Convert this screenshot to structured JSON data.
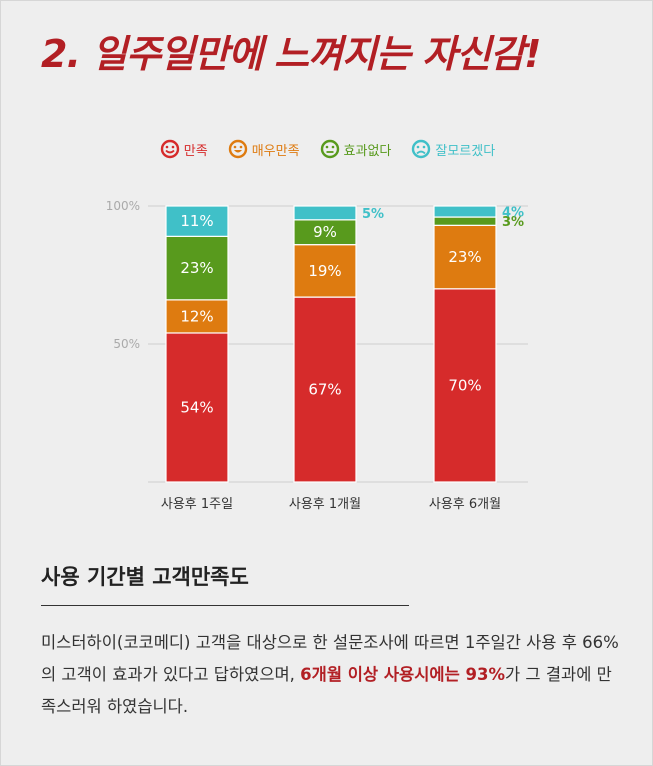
{
  "headline": "2. 일주일만에 느껴지는 자신감!",
  "legend": [
    {
      "label": "만족",
      "color": "#d62b2b",
      "icon": "smile-face-icon"
    },
    {
      "label": "매우만족",
      "color": "#de7b10",
      "icon": "grin-face-icon"
    },
    {
      "label": "효과없다",
      "color": "#589a1d",
      "icon": "neutral-face-icon"
    },
    {
      "label": "잘모르겠다",
      "color": "#40c0c8",
      "icon": "sad-face-icon"
    }
  ],
  "chart_data": {
    "type": "bar",
    "stacked": true,
    "categories": [
      "사용후 1주일",
      "사용후 1개월",
      "사용후 6개월"
    ],
    "series": [
      {
        "name": "만족",
        "color": "#d62b2b",
        "values": [
          54,
          67,
          70
        ],
        "labels": [
          "54%",
          "67%",
          "70%"
        ]
      },
      {
        "name": "매우만족",
        "color": "#de7b10",
        "values": [
          12,
          19,
          23
        ],
        "labels": [
          "12%",
          "19%",
          "23%"
        ]
      },
      {
        "name": "효과없다",
        "color": "#589a1d",
        "values": [
          23,
          9,
          3
        ],
        "labels": [
          "23%",
          "9%",
          "3%"
        ]
      },
      {
        "name": "잘모르겠다",
        "color": "#40c0c8",
        "values": [
          11,
          5,
          4
        ],
        "labels": [
          "11%",
          "5%",
          "4%"
        ]
      }
    ],
    "yticks": [
      {
        "value": 50,
        "label": "50%"
      },
      {
        "value": 100,
        "label": "100%"
      }
    ],
    "ylim": [
      0,
      100
    ],
    "grid": true
  },
  "section_title": "사용 기간별 고객만족도",
  "description": {
    "plain": "미스터하이(코코메디) 고객을 대상으로 한 설문조사에 따르면 1주일간 사용 후 66%의 고객이 효과가 있다고 답하였으며, ",
    "highlight1": "6개월 이상 사용시에는 93%",
    "after": "가 그 결과에 만족스러워 하였습니다."
  }
}
